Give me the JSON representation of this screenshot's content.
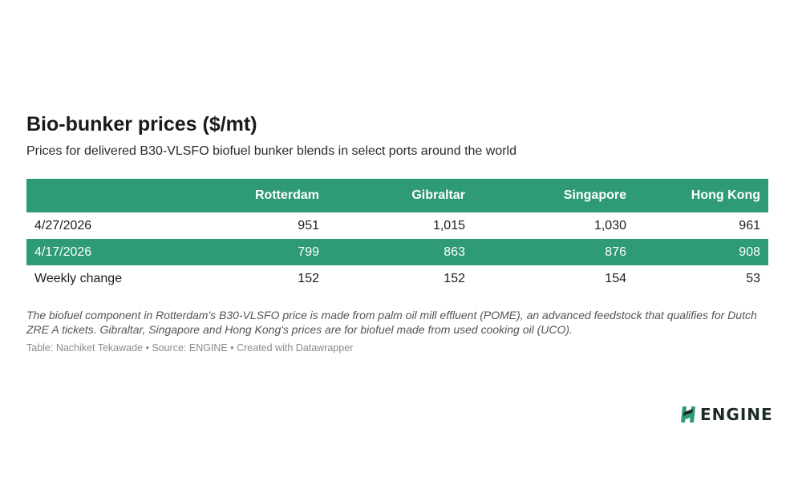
{
  "title": "Bio-bunker prices ($/mt)",
  "subtitle": "Prices for delivered B30-VLSFO biofuel bunker blends in select ports around the world",
  "colors": {
    "header_bg": "#2e9a76",
    "highlight_row_bg": "#2e9a76",
    "header_text": "#ffffff"
  },
  "chart_data": {
    "type": "table",
    "columns": [
      "",
      "Rotterdam",
      "Gibraltar",
      "Singapore",
      "Hong Kong"
    ],
    "rows": [
      {
        "label": "4/27/2026",
        "values": [
          "951",
          "1,015",
          "1,030",
          "961"
        ],
        "highlighted": false
      },
      {
        "label": "4/17/2026",
        "values": [
          "799",
          "863",
          "876",
          "908"
        ],
        "highlighted": true
      },
      {
        "label": "Weekly change",
        "values": [
          "152",
          "152",
          "154",
          "53"
        ],
        "highlighted": false
      }
    ]
  },
  "note": "The biofuel component in Rotterdam's B30-VLSFO price is made from palm oil mill effluent (POME), an advanced feedstock that qualifies for Dutch ZRE A tickets. Gibraltar, Singapore and Hong Kong's prices are for biofuel made from used cooking oil (UCO).",
  "source": "Table: Nachiket Tekawade • Source: ENGINE • Created with Datawrapper",
  "logo": {
    "text": "ENGINE",
    "icon": "engine-logo-icon"
  }
}
